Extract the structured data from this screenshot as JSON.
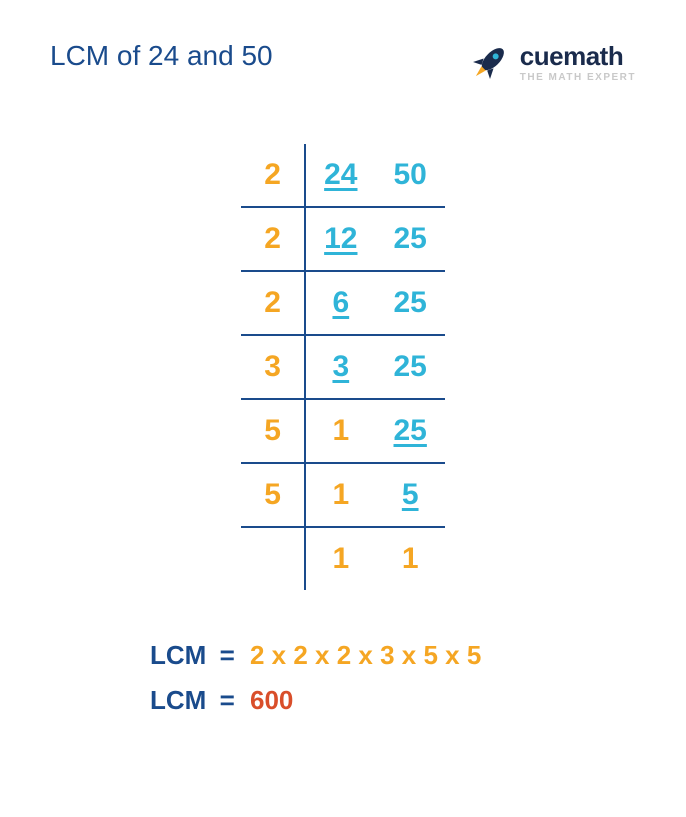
{
  "title": "LCM of 24 and 50",
  "title_color": "#1a4b8c",
  "logo": {
    "brand": "cuemath",
    "tagline": "THE MATH EXPERT",
    "rocket_body_color": "#1a2b4c",
    "rocket_flame_color": "#f5a623"
  },
  "colors": {
    "divisor": "#f5a623",
    "input_num": "#2fb4d8",
    "final_one": "#f5a623",
    "lcm_label": "#1a4b8c",
    "product_text": "#f5a623",
    "answer_text": "#d94e2a",
    "border": "#1a4b8c"
  },
  "division": {
    "rows": [
      {
        "divisor": "2",
        "cells": [
          {
            "v": "24",
            "u": true,
            "c": "#2fb4d8"
          },
          {
            "v": "50",
            "u": false,
            "c": "#2fb4d8"
          }
        ],
        "ruled": true
      },
      {
        "divisor": "2",
        "cells": [
          {
            "v": "12",
            "u": true,
            "c": "#2fb4d8"
          },
          {
            "v": "25",
            "u": false,
            "c": "#2fb4d8"
          }
        ],
        "ruled": true
      },
      {
        "divisor": "2",
        "cells": [
          {
            "v": "6",
            "u": true,
            "c": "#2fb4d8"
          },
          {
            "v": "25",
            "u": false,
            "c": "#2fb4d8"
          }
        ],
        "ruled": true
      },
      {
        "divisor": "3",
        "cells": [
          {
            "v": "3",
            "u": true,
            "c": "#2fb4d8"
          },
          {
            "v": "25",
            "u": false,
            "c": "#2fb4d8"
          }
        ],
        "ruled": true
      },
      {
        "divisor": "5",
        "cells": [
          {
            "v": "1",
            "u": false,
            "c": "#f5a623"
          },
          {
            "v": "25",
            "u": true,
            "c": "#2fb4d8"
          }
        ],
        "ruled": true
      },
      {
        "divisor": "5",
        "cells": [
          {
            "v": "1",
            "u": false,
            "c": "#f5a623"
          },
          {
            "v": "5",
            "u": true,
            "c": "#2fb4d8"
          }
        ],
        "ruled": true
      },
      {
        "divisor": "",
        "cells": [
          {
            "v": "1",
            "u": false,
            "c": "#f5a623"
          },
          {
            "v": "1",
            "u": false,
            "c": "#f5a623"
          }
        ],
        "ruled": false
      }
    ]
  },
  "result": {
    "label": "LCM",
    "eq": "=",
    "product": "2 x 2 x 2 x 3 x 5 x 5",
    "answer": "600"
  }
}
